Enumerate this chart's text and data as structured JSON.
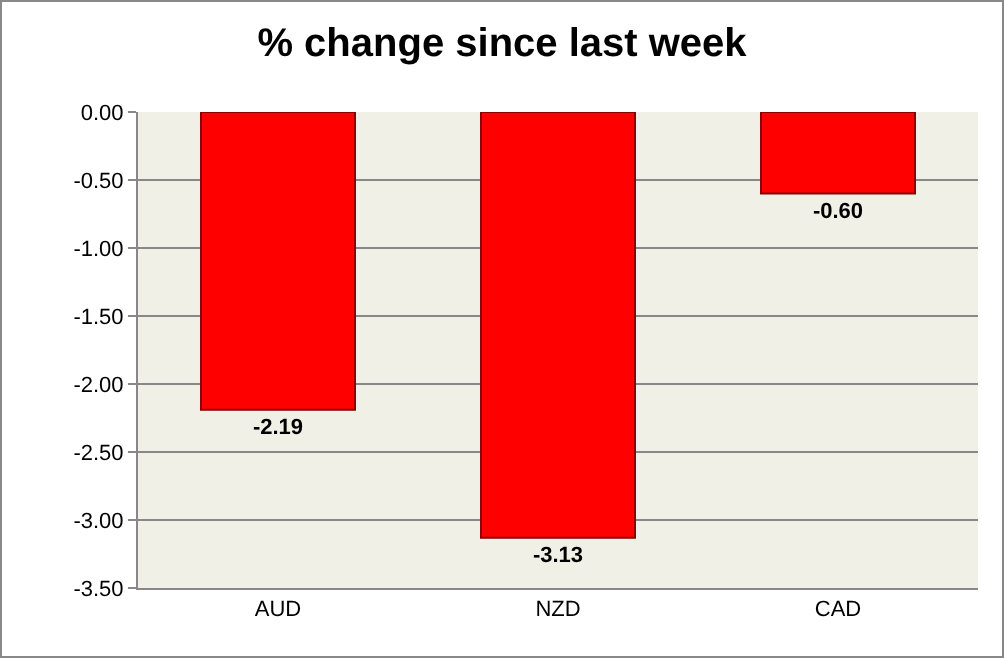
{
  "chart_data": {
    "type": "bar",
    "title": "% change since last week",
    "categories": [
      "AUD",
      "NZD",
      "CAD"
    ],
    "values": [
      -2.19,
      -3.13,
      -0.6
    ],
    "color": "#ff0000",
    "value_labels": [
      "-2.19",
      "-3.13",
      "-0.60"
    ],
    "ylim": [
      -3.5,
      0
    ],
    "yticks": [
      {
        "value": -3.5,
        "label": "-3.50"
      },
      {
        "value": -3,
        "label": "-3.00"
      },
      {
        "value": -2.5,
        "label": "-2.50"
      },
      {
        "value": -2,
        "label": "-2.00"
      },
      {
        "value": -1.5,
        "label": "-1.50"
      },
      {
        "value": -1,
        "label": "-1.00"
      },
      {
        "value": -0.5,
        "label": "-0.50"
      },
      {
        "value": 0,
        "label": "0.00"
      }
    ],
    "grid": "y"
  }
}
